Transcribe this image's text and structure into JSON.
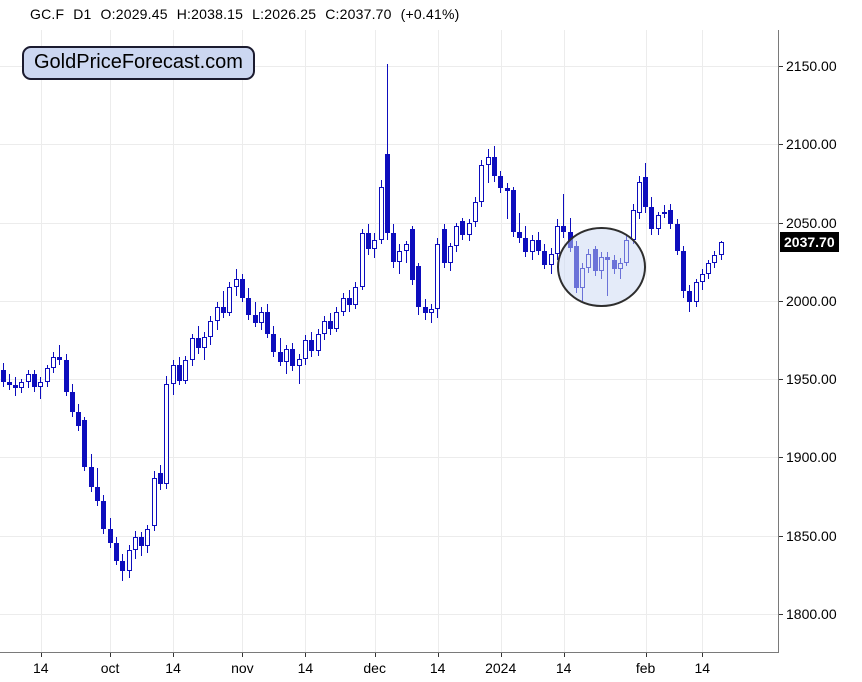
{
  "header": {
    "symbol": "GC.F",
    "interval": "D1",
    "open": "O:2029.45",
    "high": "H:2038.15",
    "low": "L:2026.25",
    "close": "C:2037.70",
    "change": "(+0.41%)"
  },
  "logo": {
    "text": "GoldPriceForecast.com"
  },
  "chart_data": {
    "type": "candlestick",
    "title": "Gold futures daily candlestick chart",
    "colors": {
      "candle": "#0d0dbd",
      "grid": "#ececec",
      "axis": "#7a7a7a",
      "badge_bg": "#000000",
      "badge_text": "#ffffff",
      "annotation_fill": "rgba(201,216,243,0.5)",
      "annotation_stroke": "#2e2e2e"
    },
    "y_axis": {
      "min": 1800,
      "max": 2150,
      "step": 50,
      "tick_labels": [
        "2150.00",
        "2100.00",
        "2050.00",
        "2000.00",
        "1950.00",
        "1900.00",
        "1850.00",
        "1800.00"
      ],
      "last_price": 2037.7,
      "last_price_label": "2037.70"
    },
    "x_axis": {
      "tick_labels": [
        "14",
        "oct",
        "14",
        "nov",
        "14",
        "dec",
        "14",
        "2024",
        "14",
        "feb",
        "14"
      ],
      "tick_candle_index": [
        6,
        17,
        27,
        38,
        48,
        59,
        69,
        79,
        89,
        102,
        111
      ]
    },
    "annotation_ellipse": {
      "from_index": 88,
      "to_index": 102,
      "price_high": 2047,
      "price_low": 1996
    },
    "candles_format": [
      "open",
      "high",
      "low",
      "close"
    ],
    "candles": [
      [
        1956,
        1960,
        1945,
        1948
      ],
      [
        1948,
        1953,
        1943,
        1946
      ],
      [
        1946,
        1951,
        1939,
        1944
      ],
      [
        1944,
        1950,
        1941,
        1948
      ],
      [
        1948,
        1956,
        1944,
        1953
      ],
      [
        1953,
        1956,
        1942,
        1945
      ],
      [
        1945,
        1951,
        1937,
        1948
      ],
      [
        1948,
        1959,
        1945,
        1957
      ],
      [
        1957,
        1967,
        1954,
        1964
      ],
      [
        1964,
        1972,
        1959,
        1962
      ],
      [
        1962,
        1966,
        1939,
        1942
      ],
      [
        1942,
        1947,
        1926,
        1929
      ],
      [
        1929,
        1934,
        1917,
        1920
      ],
      [
        1924,
        1926,
        1891,
        1894
      ],
      [
        1894,
        1902,
        1878,
        1881
      ],
      [
        1881,
        1893,
        1869,
        1872
      ],
      [
        1872,
        1876,
        1851,
        1854
      ],
      [
        1854,
        1861,
        1842,
        1845
      ],
      [
        1845,
        1849,
        1831,
        1834
      ],
      [
        1834,
        1838,
        1821,
        1827
      ],
      [
        1827,
        1844,
        1823,
        1841
      ],
      [
        1841,
        1853,
        1835,
        1849
      ],
      [
        1849,
        1852,
        1837,
        1843
      ],
      [
        1843,
        1857,
        1839,
        1854
      ],
      [
        1856,
        1891,
        1853,
        1887
      ],
      [
        1890,
        1895,
        1879,
        1883
      ],
      [
        1883,
        1952,
        1880,
        1947
      ],
      [
        1947,
        1962,
        1940,
        1959
      ],
      [
        1959,
        1964,
        1946,
        1949
      ],
      [
        1949,
        1965,
        1947,
        1962
      ],
      [
        1962,
        1979,
        1958,
        1976
      ],
      [
        1976,
        1984,
        1966,
        1970
      ],
      [
        1970,
        1980,
        1962,
        1977
      ],
      [
        1977,
        1990,
        1972,
        1987
      ],
      [
        1987,
        1999,
        1981,
        1996
      ],
      [
        1996,
        2006,
        1989,
        1992
      ],
      [
        1992,
        2012,
        1990,
        2009
      ],
      [
        2009,
        2020,
        2003,
        2014
      ],
      [
        2014,
        2017,
        1999,
        2002
      ],
      [
        2002,
        2008,
        1988,
        1991
      ],
      [
        1991,
        1999,
        1983,
        1986
      ],
      [
        1986,
        1996,
        1981,
        1993
      ],
      [
        1993,
        1998,
        1976,
        1979
      ],
      [
        1979,
        1984,
        1964,
        1967
      ],
      [
        1967,
        1976,
        1958,
        1961
      ],
      [
        1961,
        1972,
        1953,
        1969
      ],
      [
        1969,
        1973,
        1955,
        1958
      ],
      [
        1958,
        1966,
        1947,
        1963
      ],
      [
        1963,
        1978,
        1959,
        1975
      ],
      [
        1975,
        1980,
        1964,
        1968
      ],
      [
        1968,
        1982,
        1965,
        1979
      ],
      [
        1979,
        1990,
        1975,
        1987
      ],
      [
        1987,
        1992,
        1978,
        1982
      ],
      [
        1982,
        1996,
        1980,
        1993
      ],
      [
        1993,
        2005,
        1990,
        2002
      ],
      [
        2002,
        2007,
        1993,
        1997
      ],
      [
        1997,
        2012,
        1995,
        2009
      ],
      [
        2009,
        2046,
        2007,
        2043
      ],
      [
        2043,
        2049,
        2029,
        2033
      ],
      [
        2033,
        2043,
        2027,
        2039
      ],
      [
        2039,
        2077,
        2036,
        2073
      ],
      [
        2094,
        2151,
        2039,
        2043
      ],
      [
        2043,
        2049,
        2021,
        2025
      ],
      [
        2025,
        2036,
        2017,
        2032
      ],
      [
        2032,
        2038,
        2024,
        2036
      ],
      [
        2046,
        2048,
        2010,
        2013
      ],
      [
        2022,
        2024,
        1991,
        1996
      ],
      [
        1996,
        2001,
        1988,
        1992
      ],
      [
        1992,
        1998,
        1986,
        1995
      ],
      [
        1995,
        2040,
        1989,
        2036
      ],
      [
        2046,
        2049,
        2021,
        2024
      ],
      [
        2024,
        2037,
        2019,
        2035
      ],
      [
        2035,
        2050,
        2031,
        2048
      ],
      [
        2051,
        2053,
        2039,
        2042
      ],
      [
        2042,
        2052,
        2038,
        2050
      ],
      [
        2050,
        2066,
        2047,
        2063
      ],
      [
        2063,
        2090,
        2060,
        2087
      ],
      [
        2087,
        2097,
        2075,
        2092
      ],
      [
        2092,
        2099,
        2076,
        2080
      ],
      [
        2080,
        2083,
        2069,
        2072
      ],
      [
        2072,
        2075,
        2052,
        2070
      ],
      [
        2071,
        2073,
        2041,
        2044
      ],
      [
        2044,
        2056,
        2037,
        2040
      ],
      [
        2040,
        2048,
        2028,
        2031
      ],
      [
        2031,
        2042,
        2026,
        2039
      ],
      [
        2039,
        2044,
        2029,
        2032
      ],
      [
        2032,
        2036,
        2020,
        2023
      ],
      [
        2023,
        2034,
        2017,
        2030
      ],
      [
        2030,
        2052,
        2026,
        2048
      ],
      [
        2048,
        2068,
        2040,
        2044
      ],
      [
        2044,
        2053,
        2031,
        2034
      ],
      [
        2035,
        2038,
        2005,
        2008
      ],
      [
        2008,
        2024,
        2000,
        2021
      ],
      [
        2021,
        2033,
        2018,
        2030
      ],
      [
        2033,
        2035,
        2016,
        2019
      ],
      [
        2019,
        2031,
        2014,
        2028
      ],
      [
        2028,
        2031,
        2003,
        2026
      ],
      [
        2026,
        2029,
        2017,
        2020
      ],
      [
        2020,
        2027,
        2014,
        2024
      ],
      [
        2024,
        2042,
        2022,
        2039
      ],
      [
        2039,
        2062,
        2036,
        2058
      ],
      [
        2056,
        2080,
        2052,
        2076
      ],
      [
        2079,
        2088,
        2056,
        2060
      ],
      [
        2060,
        2066,
        2042,
        2046
      ],
      [
        2046,
        2057,
        2042,
        2055
      ],
      [
        2057,
        2061,
        2053,
        2056
      ],
      [
        2058,
        2062,
        2046,
        2049
      ],
      [
        2049,
        2052,
        2029,
        2032
      ],
      [
        2032,
        2035,
        2002,
        2006
      ],
      [
        2006,
        2010,
        1993,
        1999
      ],
      [
        1999,
        2014,
        1996,
        2012
      ],
      [
        2012,
        2020,
        2007,
        2017
      ],
      [
        2017,
        2026,
        2014,
        2024
      ],
      [
        2024,
        2032,
        2021,
        2029
      ],
      [
        2029.45,
        2038.15,
        2026.25,
        2037.7
      ]
    ]
  }
}
